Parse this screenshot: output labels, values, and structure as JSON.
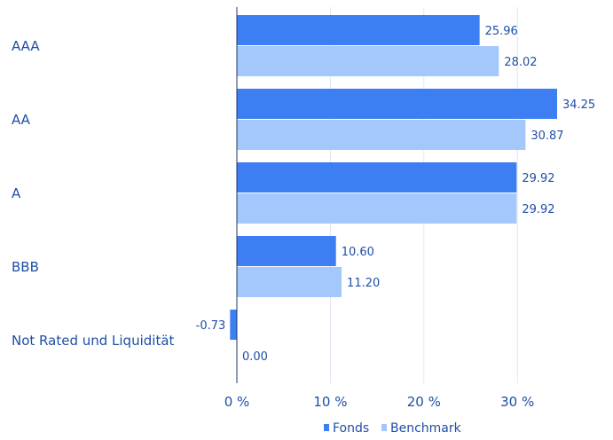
{
  "chart_data": {
    "type": "bar",
    "orientation": "horizontal",
    "categories": [
      "AAA",
      "AA",
      "A",
      "BBB",
      "Not Rated und Liquidität"
    ],
    "series": [
      {
        "name": "Fonds",
        "values": [
          25.96,
          34.25,
          29.92,
          10.6,
          -0.73
        ],
        "labels": [
          "25.96",
          "34.25",
          "29.92",
          "10.60",
          "-0.73"
        ]
      },
      {
        "name": "Benchmark",
        "values": [
          28.02,
          30.87,
          29.92,
          11.2,
          0.0
        ],
        "labels": [
          "28.02",
          "30.87",
          "29.92",
          "11.20",
          "0.00"
        ]
      }
    ],
    "x_ticks": [
      0,
      10,
      20,
      30
    ],
    "x_tick_labels": [
      "0 %",
      "10 %",
      "20 %",
      "30 %"
    ],
    "xlim": [
      0,
      34.25
    ],
    "grid": true,
    "legend_position": "bottom-right",
    "title": "",
    "xlabel": "",
    "ylabel": ""
  },
  "colors": {
    "fonds": "#3d7ef2",
    "benchmark": "#a4c8fb",
    "text": "#1f4fa6",
    "grid": "#dde8f6",
    "axis": "#1f3a6b"
  }
}
